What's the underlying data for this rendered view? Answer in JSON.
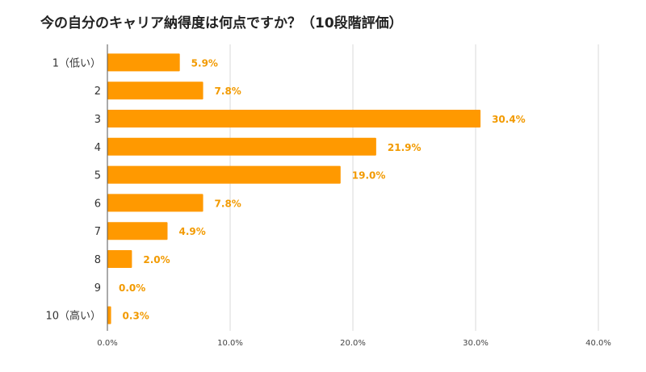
{
  "chart_data": {
    "type": "bar",
    "orientation": "horizontal",
    "title": "今の自分のキャリア納得度は何点ですか？（10段階評価）",
    "categories": [
      "1（低い）",
      "2",
      "3",
      "4",
      "5",
      "6",
      "7",
      "8",
      "9",
      "10（高い）"
    ],
    "values": [
      5.9,
      7.8,
      30.4,
      21.9,
      19.0,
      7.8,
      4.9,
      2.0,
      0.0,
      0.3
    ],
    "value_labels": [
      "5.9%",
      "7.8%",
      "30.4%",
      "21.9%",
      "19.0%",
      "7.8%",
      "4.9%",
      "2.0%",
      "0.0%",
      "0.3%"
    ],
    "xlim": [
      0,
      40
    ],
    "xticks": [
      0,
      10,
      20,
      30,
      40
    ],
    "xtick_labels": [
      "0.0%",
      "10.0%",
      "20.0%",
      "30.0%",
      "40.0%"
    ],
    "xlabel": "",
    "ylabel": "",
    "grid": true,
    "bar_color": "#ff9900",
    "label_color": "#f29a00"
  }
}
